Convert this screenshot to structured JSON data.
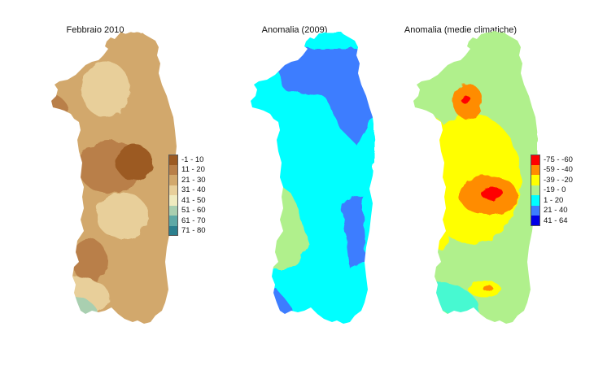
{
  "panels": [
    {
      "title": "Febbraio 2010"
    },
    {
      "title": "Anomalia (2009)"
    },
    {
      "title": "Anomalia (medie climatiche)"
    }
  ],
  "legend_left": [
    {
      "label": "-1 - 10",
      "color": "#9c5a22"
    },
    {
      "label": "11 - 20",
      "color": "#b97f48"
    },
    {
      "label": "21 - 30",
      "color": "#d2a86c"
    },
    {
      "label": "31 - 40",
      "color": "#e8cf9a"
    },
    {
      "label": "41 - 50",
      "color": "#f0ebbf"
    },
    {
      "label": "51 - 60",
      "color": "#a9cfb0"
    },
    {
      "label": "61 - 70",
      "color": "#5ea9a6"
    },
    {
      "label": "71 - 80",
      "color": "#2b7f8e"
    }
  ],
  "legend_right": [
    {
      "label": "-75 - -60",
      "color": "#ff0000"
    },
    {
      "label": "-59 - -40",
      "color": "#ff8c00"
    },
    {
      "label": "-39 - -20",
      "color": "#ffff00"
    },
    {
      "label": "-19 - 0",
      "color": "#b0f08c"
    },
    {
      "label": "1 - 20",
      "color": "#00ffff"
    },
    {
      "label": "21 - 40",
      "color": "#3c7dff"
    },
    {
      "label": "41 - 64",
      "color": "#0000e6"
    }
  ]
}
